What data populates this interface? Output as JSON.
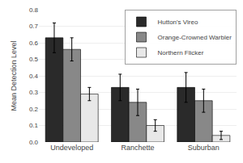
{
  "chart_data": {
    "type": "bar",
    "categories": [
      "Undeveloped",
      "Ranchette",
      "Suburban"
    ],
    "series": [
      {
        "name": "Hutton's Vireo",
        "color": "#2a2a2a",
        "values": [
          0.63,
          0.33,
          0.33
        ],
        "errors": [
          0.09,
          0.08,
          0.09
        ]
      },
      {
        "name": "Orange-Crowned Warbler",
        "color": "#888888",
        "values": [
          0.56,
          0.24,
          0.25
        ],
        "errors": [
          0.07,
          0.08,
          0.07
        ]
      },
      {
        "name": "Northern Flicker",
        "color": "#e8e8e8",
        "values": [
          0.29,
          0.1,
          0.04
        ],
        "errors": [
          0.04,
          0.035,
          0.025
        ]
      }
    ],
    "ylabel": "Mean Detection Level",
    "ylim": [
      0,
      0.8
    ],
    "yticks": [
      {
        "value": 0,
        "label": "0.0"
      },
      0.1,
      0.2,
      0.3,
      0.4,
      0.5,
      0.6,
      0.7,
      0.8
    ],
    "grid": true,
    "legend": "upper right"
  }
}
